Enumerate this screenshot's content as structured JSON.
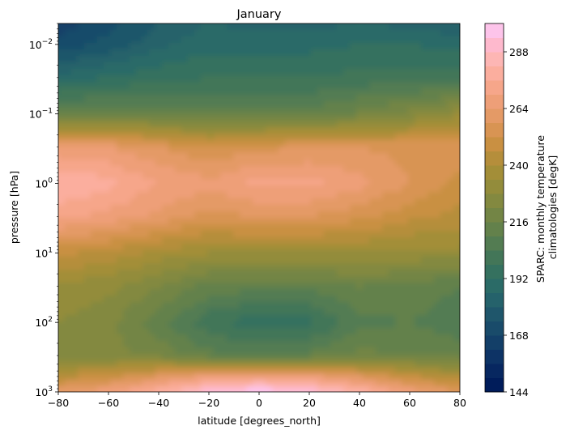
{
  "chart_data": {
    "type": "contourf",
    "title": "January",
    "xlabel": "latitude [degrees_north]",
    "ylabel": "pressure [hPa]",
    "xlim": [
      -80,
      80
    ],
    "xticks": [
      -80,
      -60,
      -40,
      -20,
      0,
      20,
      40,
      60,
      80
    ],
    "xtick_labels": [
      "−80",
      "−60",
      "−40",
      "−20",
      "0",
      "20",
      "40",
      "60",
      "80"
    ],
    "y_scale": "log",
    "y_inverted": true,
    "ylim": [
      1000,
      0.005
    ],
    "yticks": [
      {
        "value": 0.01,
        "base": "10",
        "exp": "−2"
      },
      {
        "value": 0.1,
        "base": "10",
        "exp": "−1"
      },
      {
        "value": 1,
        "base": "10",
        "exp": "0"
      },
      {
        "value": 10,
        "base": "10",
        "exp": "1"
      },
      {
        "value": 100,
        "base": "10",
        "exp": "2"
      },
      {
        "value": 1000,
        "base": "10",
        "exp": "3"
      }
    ],
    "colorbar": {
      "label_lines": [
        "SPARC: monthly temperature",
        "climatologies [degK]"
      ],
      "levels": [
        144,
        150,
        156,
        162,
        168,
        174,
        180,
        186,
        192,
        198,
        204,
        210,
        216,
        222,
        228,
        234,
        240,
        246,
        252,
        258,
        264,
        270,
        276,
        282,
        288,
        294,
        300
      ],
      "tick_values": [
        144,
        168,
        192,
        216,
        240,
        264,
        288
      ],
      "tick_labels": [
        "144",
        "168",
        "192",
        "216",
        "240",
        "264",
        "288"
      ]
    },
    "colors": [
      "#001c5a",
      "#072760",
      "#0d3365",
      "#133f68",
      "#194b6a",
      "#1f566b",
      "#25626b",
      "#2b6b67",
      "#35715f",
      "#437658",
      "#537c52",
      "#63814b",
      "#738545",
      "#838940",
      "#938c3b",
      "#a38e38",
      "#b58e3b",
      "#c99042",
      "#d89453",
      "#e49a66",
      "#ee9f78",
      "#f6a68a",
      "#fbae9e",
      "#fdb6b4",
      "#feb9cd",
      "#fdc4ea"
    ],
    "latitudes": [
      -80,
      -60,
      -40,
      -20,
      0,
      20,
      40,
      60,
      80
    ],
    "pressures": [
      0.005,
      0.01,
      0.03,
      0.1,
      0.3,
      1,
      3,
      10,
      30,
      100,
      300,
      600,
      1000
    ],
    "temperature": [
      [
        165,
        172,
        180,
        186,
        184,
        184,
        186,
        184,
        180
      ],
      [
        170,
        176,
        184,
        190,
        190,
        190,
        192,
        192,
        190
      ],
      [
        188,
        192,
        196,
        198,
        198,
        198,
        200,
        200,
        200
      ],
      [
        214,
        216,
        214,
        212,
        212,
        212,
        218,
        224,
        232
      ],
      [
        266,
        264,
        258,
        252,
        256,
        258,
        258,
        256,
        256
      ],
      [
        282,
        278,
        270,
        266,
        272,
        272,
        266,
        258,
        250
      ],
      [
        272,
        268,
        262,
        256,
        258,
        258,
        254,
        248,
        244
      ],
      [
        248,
        244,
        238,
        234,
        234,
        234,
        234,
        232,
        232
      ],
      [
        232,
        230,
        222,
        214,
        212,
        212,
        216,
        214,
        210
      ],
      [
        228,
        224,
        212,
        200,
        194,
        196,
        208,
        210,
        206
      ],
      [
        226,
        224,
        220,
        212,
        210,
        212,
        218,
        216,
        214
      ],
      [
        244,
        250,
        258,
        266,
        270,
        266,
        258,
        248,
        240
      ],
      [
        262,
        268,
        280,
        294,
        300,
        294,
        282,
        268,
        258
      ]
    ]
  }
}
